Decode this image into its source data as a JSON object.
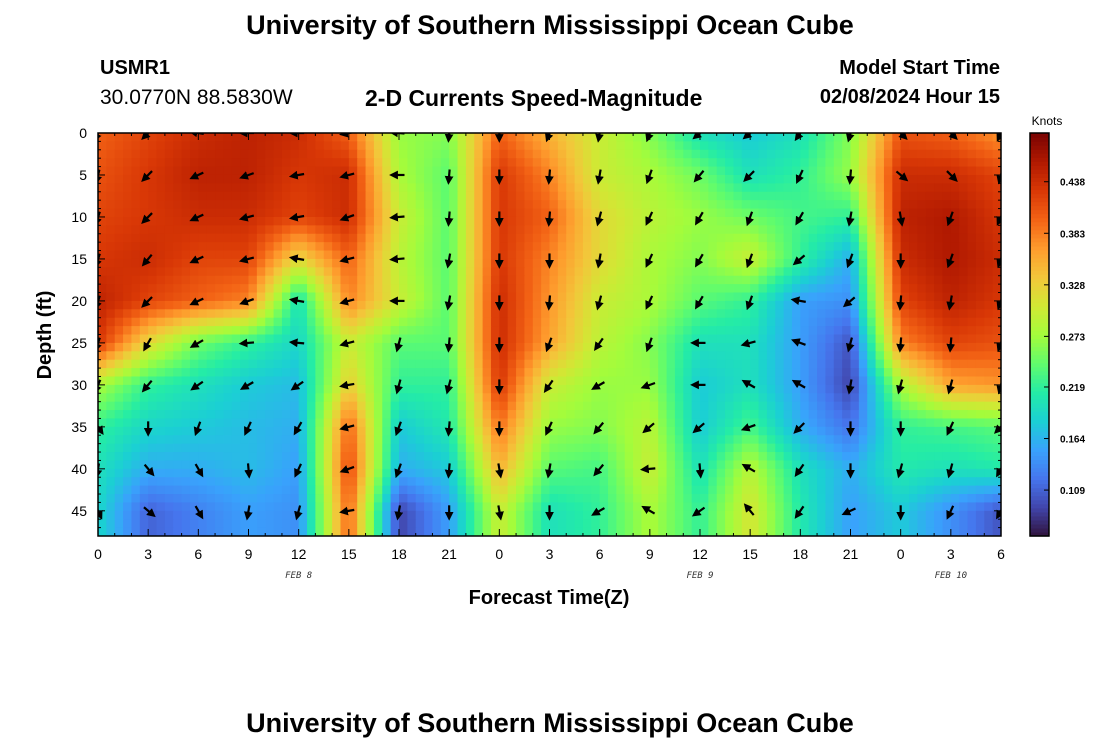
{
  "header": {
    "title": "University of Southern Mississippi Ocean Cube",
    "station_name": "USMR1",
    "coordinates": "30.0770N  88.5830W",
    "model_label": "Model Start Time",
    "model_time": "02/08/2024 Hour 15"
  },
  "footer": {
    "title": "University of Southern Mississippi Ocean Cube"
  },
  "colors": {
    "arrow": "#000000",
    "colormap": [
      "#30123b",
      "#4145ab",
      "#4675ed",
      "#39a2fc",
      "#1bcfd4",
      "#24eca6",
      "#61fc6c",
      "#a4fc3b",
      "#d1e834",
      "#f3c63a",
      "#fe9b2d",
      "#f36315",
      "#d93806",
      "#b11901",
      "#7a0402"
    ]
  },
  "chart_data": {
    "type": "heatmap",
    "title": "2-D Currents Speed-Magnitude",
    "xlabel": "Forecast Time(Z)",
    "ylabel": "Depth (ft)",
    "x_tick_labels": [
      "0",
      "3",
      "6",
      "9",
      "12",
      "15",
      "18",
      "21",
      "0",
      "3",
      "6",
      "9",
      "12",
      "15",
      "18",
      "21",
      "0",
      "3",
      "6"
    ],
    "x_range_hours": [
      0,
      54
    ],
    "date_labels": [
      {
        "text": "FEB 8",
        "hour": 12
      },
      {
        "text": "FEB 9",
        "hour": 36
      },
      {
        "text": "FEB 10",
        "hour": 51
      }
    ],
    "y_tick_labels": [
      "0",
      "5",
      "10",
      "15",
      "20",
      "25",
      "30",
      "35",
      "40",
      "45"
    ],
    "y_ticks": [
      0,
      5,
      10,
      15,
      20,
      25,
      30,
      35,
      40,
      45
    ],
    "ylim": [
      0,
      48
    ],
    "colorbar": {
      "units": "Knots",
      "range": [
        0.06,
        0.49
      ],
      "tick_values": [
        0.438,
        0.383,
        0.328,
        0.273,
        0.219,
        0.164,
        0.109
      ],
      "tick_labels": [
        "0.438",
        "0.383",
        "0.328",
        "0.273",
        "0.219",
        "0.164",
        "0.109"
      ]
    },
    "grid_hours": [
      0,
      3,
      6,
      9,
      12,
      15,
      18,
      21,
      24,
      27,
      30,
      33,
      36,
      39,
      42,
      45,
      48,
      51,
      54
    ],
    "grid_depths": [
      0,
      5,
      10,
      15,
      20,
      25,
      30,
      35,
      40,
      45
    ],
    "speed": [
      [
        0.4,
        0.42,
        0.44,
        0.45,
        0.44,
        0.4,
        0.27,
        0.26,
        0.4,
        0.35,
        0.3,
        0.26,
        0.2,
        0.18,
        0.2,
        0.26,
        0.41,
        0.4,
        0.37
      ],
      [
        0.41,
        0.43,
        0.45,
        0.45,
        0.43,
        0.44,
        0.28,
        0.24,
        0.43,
        0.38,
        0.3,
        0.28,
        0.25,
        0.2,
        0.22,
        0.27,
        0.44,
        0.44,
        0.42
      ],
      [
        0.42,
        0.43,
        0.44,
        0.44,
        0.42,
        0.44,
        0.3,
        0.24,
        0.43,
        0.4,
        0.32,
        0.29,
        0.27,
        0.25,
        0.23,
        0.22,
        0.45,
        0.46,
        0.43
      ],
      [
        0.43,
        0.44,
        0.42,
        0.42,
        0.32,
        0.4,
        0.29,
        0.24,
        0.43,
        0.38,
        0.32,
        0.28,
        0.26,
        0.3,
        0.22,
        0.16,
        0.44,
        0.46,
        0.44
      ],
      [
        0.45,
        0.42,
        0.4,
        0.38,
        0.2,
        0.38,
        0.3,
        0.24,
        0.44,
        0.37,
        0.3,
        0.28,
        0.24,
        0.22,
        0.15,
        0.14,
        0.42,
        0.45,
        0.43
      ],
      [
        0.43,
        0.32,
        0.25,
        0.22,
        0.19,
        0.3,
        0.24,
        0.24,
        0.44,
        0.36,
        0.29,
        0.26,
        0.2,
        0.2,
        0.15,
        0.1,
        0.38,
        0.42,
        0.41
      ],
      [
        0.28,
        0.22,
        0.2,
        0.18,
        0.17,
        0.33,
        0.22,
        0.22,
        0.43,
        0.3,
        0.27,
        0.27,
        0.18,
        0.2,
        0.15,
        0.09,
        0.28,
        0.36,
        0.37
      ],
      [
        0.22,
        0.19,
        0.18,
        0.17,
        0.16,
        0.4,
        0.18,
        0.21,
        0.39,
        0.27,
        0.26,
        0.29,
        0.18,
        0.23,
        0.16,
        0.12,
        0.22,
        0.23,
        0.24
      ],
      [
        0.2,
        0.16,
        0.16,
        0.17,
        0.15,
        0.42,
        0.16,
        0.18,
        0.35,
        0.24,
        0.23,
        0.3,
        0.2,
        0.29,
        0.2,
        0.16,
        0.21,
        0.2,
        0.21
      ],
      [
        0.19,
        0.11,
        0.13,
        0.15,
        0.14,
        0.4,
        0.09,
        0.15,
        0.3,
        0.2,
        0.22,
        0.28,
        0.22,
        0.31,
        0.21,
        0.15,
        0.18,
        0.14,
        0.1
      ]
    ],
    "direction_deg": [
      [
        205,
        225,
        280,
        270,
        270,
        260,
        275,
        185,
        180,
        200,
        190,
        200,
        230,
        230,
        215,
        195,
        135,
        135,
        205
      ],
      [
        195,
        225,
        245,
        250,
        260,
        255,
        270,
        185,
        180,
        185,
        190,
        200,
        220,
        225,
        205,
        185,
        130,
        135,
        195
      ],
      [
        200,
        225,
        245,
        255,
        260,
        250,
        265,
        185,
        180,
        185,
        195,
        205,
        210,
        200,
        210,
        190,
        170,
        200,
        205
      ],
      [
        200,
        220,
        245,
        255,
        280,
        255,
        265,
        190,
        180,
        180,
        190,
        205,
        210,
        200,
        230,
        200,
        180,
        200,
        200
      ],
      [
        200,
        225,
        245,
        250,
        280,
        255,
        270,
        190,
        180,
        185,
        195,
        205,
        210,
        200,
        280,
        230,
        185,
        190,
        200
      ],
      [
        200,
        210,
        240,
        265,
        275,
        255,
        195,
        185,
        180,
        200,
        215,
        200,
        270,
        255,
        290,
        195,
        185,
        185,
        200
      ],
      [
        205,
        220,
        235,
        240,
        235,
        260,
        195,
        195,
        180,
        215,
        240,
        250,
        270,
        300,
        300,
        190,
        195,
        195,
        195
      ],
      [
        145,
        180,
        200,
        205,
        210,
        255,
        200,
        185,
        180,
        205,
        220,
        230,
        230,
        250,
        225,
        180,
        180,
        205,
        225
      ],
      [
        190,
        140,
        150,
        175,
        205,
        250,
        200,
        185,
        170,
        190,
        220,
        265,
        175,
        300,
        215,
        180,
        195,
        195,
        210
      ],
      [
        155,
        130,
        150,
        190,
        195,
        260,
        190,
        180,
        170,
        180,
        240,
        300,
        235,
        320,
        215,
        245,
        180,
        205,
        210
      ]
    ]
  }
}
